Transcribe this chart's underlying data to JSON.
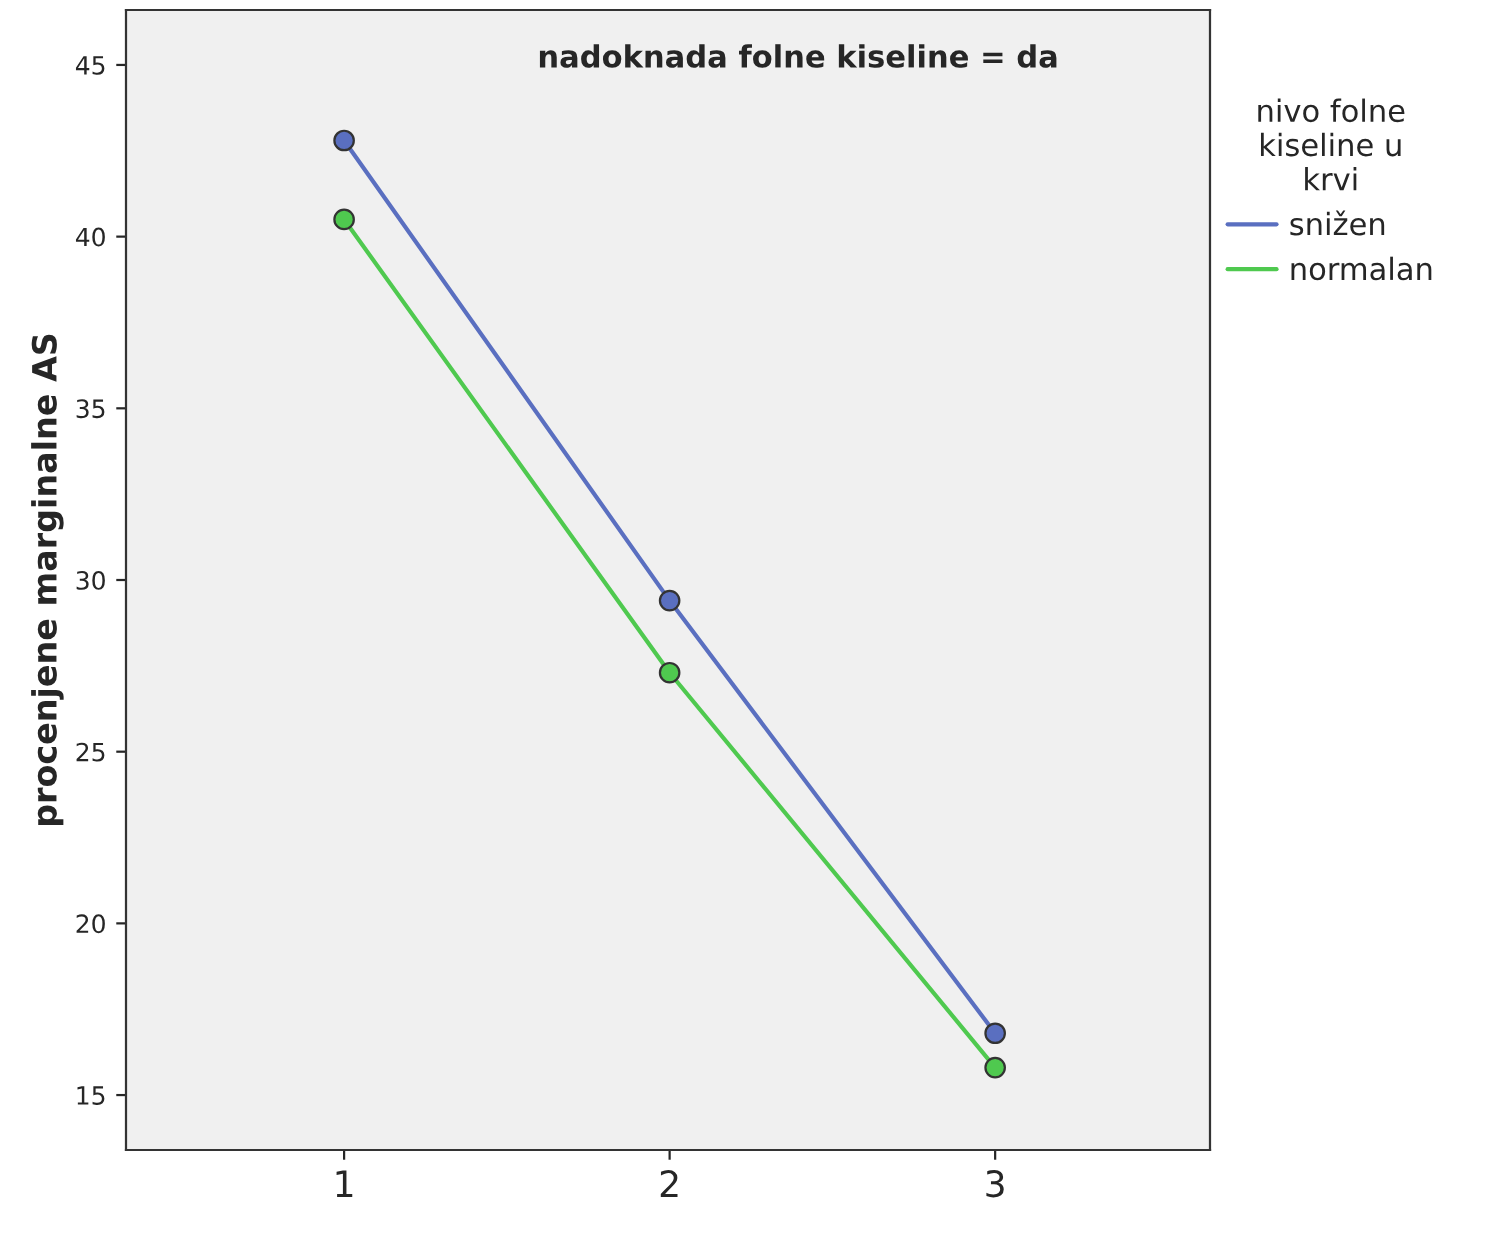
{
  "chart_data": {
    "type": "line",
    "title": "nadoknada folne kiseline = da",
    "ylabel": "procenjene marginalne AS",
    "legend_title": "nivo folne\nkiseline u\nkrvi",
    "categories": [
      "1",
      "2",
      "3"
    ],
    "series": [
      {
        "name": "snižen",
        "color": "#5a6fc0",
        "values": [
          42.8,
          29.4,
          16.8
        ]
      },
      {
        "name": "normalan",
        "color": "#4fc94f",
        "values": [
          40.5,
          27.3,
          15.8
        ]
      }
    ],
    "ylim": [
      13.4,
      46.6
    ],
    "yticks": [
      15,
      20,
      25,
      30,
      35,
      40,
      45
    ],
    "grid": false,
    "legend": "right",
    "marker": "circle",
    "line_style": "solid"
  }
}
